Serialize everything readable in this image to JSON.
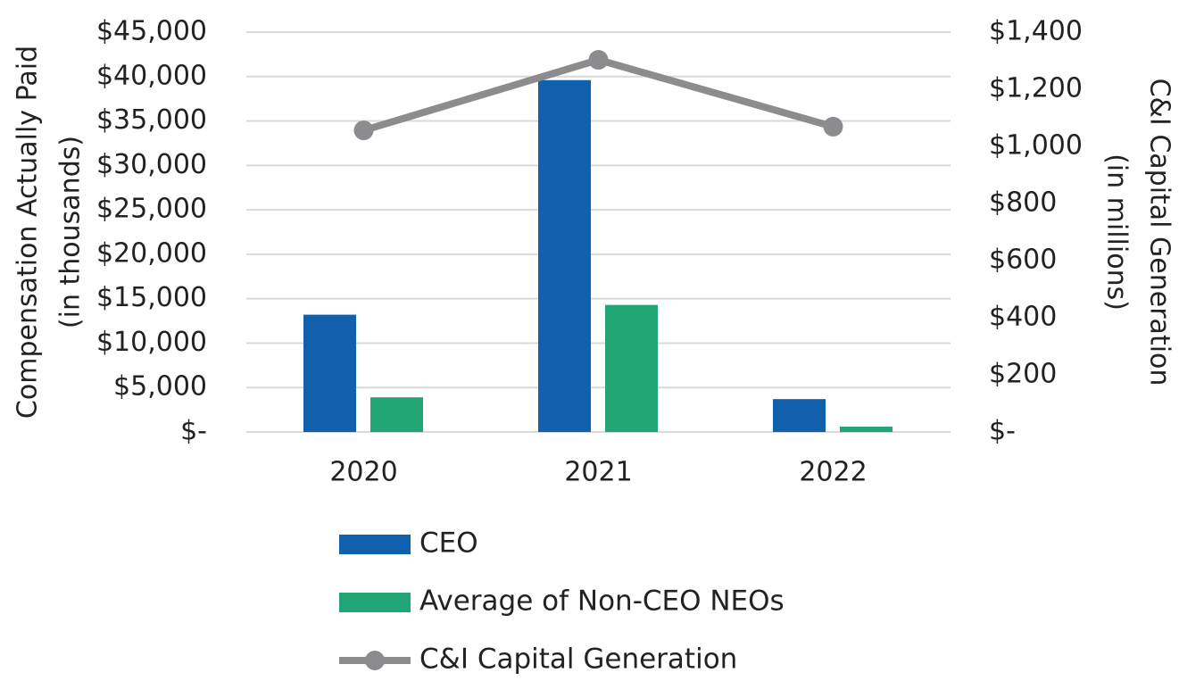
{
  "chart_data": {
    "type": "bar-line",
    "y_label": [
      "Compensation Actually Paid",
      "(in thousands)"
    ],
    "y2_label": [
      "C&I Capital Generation",
      "(in millions)"
    ],
    "categories": [
      "2020",
      "2021",
      "2022"
    ],
    "series": [
      {
        "name": "CEO",
        "type": "bar",
        "color": "#1160ae",
        "values": [
          13200,
          39600,
          3700
        ]
      },
      {
        "name": "Average of Non-CEO NEOs",
        "type": "bar",
        "color": "#22a574",
        "values": [
          3900,
          14300,
          600
        ]
      },
      {
        "name": "C&I Capital Generation",
        "type": "line",
        "axis": "y2",
        "color": "#8c8c8e",
        "values": [
          1056,
          1303,
          1069
        ]
      }
    ],
    "ylim": [
      0,
      45000
    ],
    "yticks": [
      {
        "value": 0,
        "label": "$-"
      },
      {
        "value": 5000,
        "label": "$5,000"
      },
      {
        "value": 10000,
        "label": "$10,000"
      },
      {
        "value": 15000,
        "label": "$15,000"
      },
      {
        "value": 20000,
        "label": "$20,000"
      },
      {
        "value": 25000,
        "label": "$25,000"
      },
      {
        "value": 30000,
        "label": "$30,000"
      },
      {
        "value": 35000,
        "label": "$35,000"
      },
      {
        "value": 40000,
        "label": "$40,000"
      },
      {
        "value": 45000,
        "label": "$45,000"
      }
    ],
    "y2lim": [
      0,
      1400
    ],
    "y2ticks": [
      {
        "value": 0,
        "label": "$-"
      },
      {
        "value": 200,
        "label": "$200"
      },
      {
        "value": 400,
        "label": "$400"
      },
      {
        "value": 600,
        "label": "$600"
      },
      {
        "value": 800,
        "label": "$800"
      },
      {
        "value": 1000,
        "label": "$1,000"
      },
      {
        "value": 1200,
        "label": "$1,200"
      },
      {
        "value": 1400,
        "label": "$1,400"
      }
    ],
    "grid": true
  }
}
